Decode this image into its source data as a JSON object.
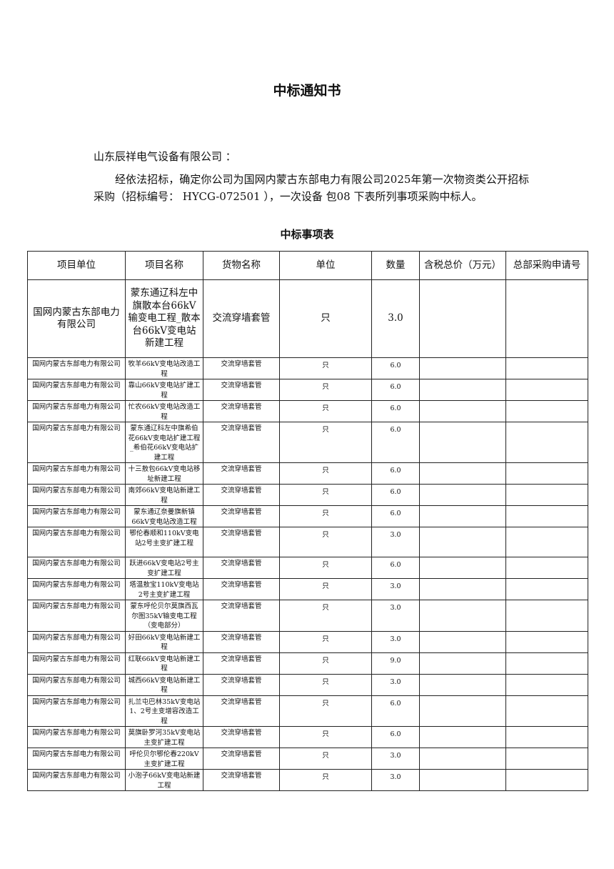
{
  "title": "中标通知书",
  "addressee": "山东辰祥电气设备有限公司 ：",
  "body": "经依法招标，确定你公司为国网内蒙古东部电力有限公司2025年第一次物资类公开招标采购（招标编号： HYCG-072501 ），一次设备 包08 下表所列事项采购中标人。",
  "table_title": "中标事项表",
  "columns": [
    "项目单位",
    "项目名称",
    "货物名称",
    "单位",
    "数量",
    "含税总价（万元）",
    "总部采购申请号"
  ],
  "rows": [
    {
      "unit_org": "国网内蒙古东部电力有限公司",
      "project": "蒙东通辽科左中旗散本台66kV输变电工程_散本台66kV变电站新建工程",
      "goods": "交流穿墙套管",
      "unit": "只",
      "qty": "3.0",
      "price": "",
      "req_no": ""
    },
    {
      "unit_org": "国网内蒙古东部电力有限公司",
      "project": "牧羊66kV变电站改造工程",
      "goods": "交流穿墙套管",
      "unit": "只",
      "qty": "6.0",
      "price": "",
      "req_no": ""
    },
    {
      "unit_org": "国网内蒙古东部电力有限公司",
      "project": "靠山66kV变电站扩建工程",
      "goods": "交流穿墙套管",
      "unit": "只",
      "qty": "6.0",
      "price": "",
      "req_no": ""
    },
    {
      "unit_org": "国网内蒙古东部电力有限公司",
      "project": "忙农66kV变电站改造工程",
      "goods": "交流穿墙套管",
      "unit": "只",
      "qty": "6.0",
      "price": "",
      "req_no": ""
    },
    {
      "unit_org": "国网内蒙古东部电力有限公司",
      "project": "蒙东通辽科左中旗希伯花66kV变电站扩建工程_希伯花66kV变电站扩建工程",
      "goods": "交流穿墙套管",
      "unit": "只",
      "qty": "6.0",
      "price": "",
      "req_no": ""
    },
    {
      "unit_org": "国网内蒙古东部电力有限公司",
      "project": "十三敖包66kV变电站移址新建工程",
      "goods": "交流穿墙套管",
      "unit": "只",
      "qty": "6.0",
      "price": "",
      "req_no": ""
    },
    {
      "unit_org": "国网内蒙古东部电力有限公司",
      "project": "南郊66kV变电站新建工程",
      "goods": "交流穿墙套管",
      "unit": "只",
      "qty": "6.0",
      "price": "",
      "req_no": ""
    },
    {
      "unit_org": "国网内蒙古东部电力有限公司",
      "project": "蒙东通辽奈曼旗新镇66kV变电站改造工程",
      "goods": "交流穿墙套管",
      "unit": "只",
      "qty": "6.0",
      "price": "",
      "req_no": ""
    },
    {
      "unit_org": "国网内蒙古东部电力有限公司",
      "project": "鄂伦春顺和110kV变电站2号主变扩建工程",
      "goods": "交流穿墙套管",
      "unit": "只",
      "qty": "3.0",
      "price": "",
      "req_no": ""
    },
    {
      "unit_org": "国网内蒙古东部电力有限公司",
      "project": "跃进66kV变电站2号主变扩建工程",
      "goods": "交流穿墙套管",
      "unit": "只",
      "qty": "6.0",
      "price": "",
      "req_no": ""
    },
    {
      "unit_org": "国网内蒙古东部电力有限公司",
      "project": "塔温敖宝110kV变电站2号主变扩建工程",
      "goods": "交流穿墙套管",
      "unit": "只",
      "qty": "3.0",
      "price": "",
      "req_no": ""
    },
    {
      "unit_org": "国网内蒙古东部电力有限公司",
      "project": "蒙东呼伦贝尔莫旗西瓦尔图35kV输变电工程（变电部分）",
      "goods": "交流穿墙套管",
      "unit": "只",
      "qty": "3.0",
      "price": "",
      "req_no": ""
    },
    {
      "unit_org": "国网内蒙古东部电力有限公司",
      "project": "好田66kV变电站新建工程",
      "goods": "交流穿墙套管",
      "unit": "只",
      "qty": "3.0",
      "price": "",
      "req_no": ""
    },
    {
      "unit_org": "国网内蒙古东部电力有限公司",
      "project": "红联66kV变电站新建工程",
      "goods": "交流穿墙套管",
      "unit": "只",
      "qty": "9.0",
      "price": "",
      "req_no": ""
    },
    {
      "unit_org": "国网内蒙古东部电力有限公司",
      "project": "城西66kV变电站新建工程",
      "goods": "交流穿墙套管",
      "unit": "只",
      "qty": "3.0",
      "price": "",
      "req_no": ""
    },
    {
      "unit_org": "国网内蒙古东部电力有限公司",
      "project": "扎兰屯巴林35kV变电站1、2号主变增容改造工程",
      "goods": "交流穿墙套管",
      "unit": "只",
      "qty": "6.0",
      "price": "",
      "req_no": ""
    },
    {
      "unit_org": "国网内蒙古东部电力有限公司",
      "project": "莫旗卧罗河35kV变电站主变扩建工程",
      "goods": "交流穿墙套管",
      "unit": "只",
      "qty": "6.0",
      "price": "",
      "req_no": ""
    },
    {
      "unit_org": "国网内蒙古东部电力有限公司",
      "project": "呼伦贝尔鄂伦春220kV主变扩建工程",
      "goods": "交流穿墙套管",
      "unit": "只",
      "qty": "3.0",
      "price": "",
      "req_no": ""
    },
    {
      "unit_org": "国网内蒙古东部电力有限公司",
      "project": "小泡子66kV变电站新建工程",
      "goods": "交流穿墙套管",
      "unit": "只",
      "qty": "3.0",
      "price": "",
      "req_no": ""
    }
  ]
}
